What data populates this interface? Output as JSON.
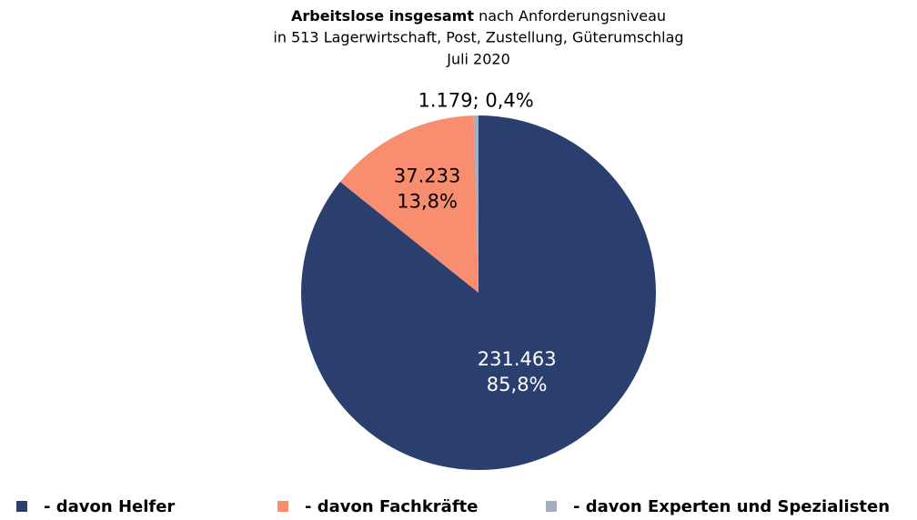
{
  "chart_data": {
    "type": "pie",
    "title": "Arbeitslose insgesamt",
    "subtitle": [
      "nach Anforderungsniveau",
      "in 513 Lagerwirtschaft, Post, Zustellung, Güterumschlag",
      "Juli 2020"
    ],
    "series": [
      {
        "name": "- davon Helfer",
        "color": "#2b3f6e",
        "values": [
          231463
        ],
        "value_labels": [
          [
            "231.463",
            "85,8%"
          ]
        ]
      },
      {
        "name": "- davon Fachkräfte",
        "color": "#f98d6f",
        "values": [
          37233
        ],
        "value_labels": [
          [
            "37.233",
            "13,8%"
          ]
        ]
      },
      {
        "name": "- davon Experten und Spezialisten",
        "color": "#a3aec4",
        "values": [
          1179
        ],
        "value_labels": [
          [
            "1.179; 0,4%"
          ]
        ]
      }
    ],
    "legend": "bottom"
  }
}
